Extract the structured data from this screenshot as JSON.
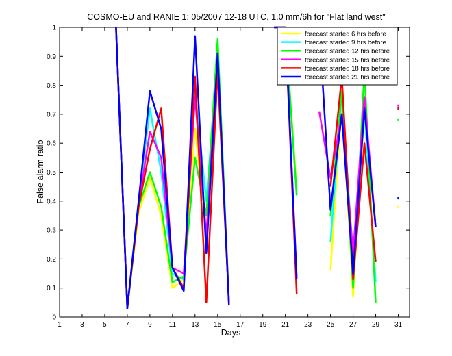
{
  "chart_data": {
    "type": "line",
    "title": "COSMO-EU and RANIE 1: 05/2007 12-18 UTC, 1.0 mm/6h for \"Flat land west\"",
    "xlabel": "Days",
    "ylabel": "False alarm ratio",
    "xlim": [
      1,
      32
    ],
    "ylim": [
      0,
      1
    ],
    "x_ticks": [
      1,
      3,
      5,
      7,
      9,
      11,
      13,
      15,
      17,
      19,
      21,
      23,
      25,
      27,
      29,
      31
    ],
    "y_ticks": [
      0,
      0.1,
      0.2,
      0.3,
      0.4,
      0.5,
      0.6,
      0.7,
      0.8,
      0.9,
      1
    ],
    "x_tick_labels": [
      "1",
      "3",
      "5",
      "7",
      "9",
      "11",
      "13",
      "15",
      "17",
      "19",
      "21",
      "23",
      "25",
      "27",
      "29",
      "31"
    ],
    "y_tick_labels": [
      "0",
      "0.1",
      "0.2",
      "0.3",
      "0.4",
      "0.5",
      "0.6",
      "0.7",
      "0.8",
      "0.9",
      "1"
    ],
    "legend_position": "top-right",
    "grid": false,
    "series": [
      {
        "name": "forecast started 6 hrs before",
        "color": "#ffff00",
        "x": [
          6,
          7,
          8,
          9,
          10,
          11,
          12,
          13,
          14,
          15,
          16,
          null,
          20,
          21,
          22,
          null,
          25,
          26,
          27,
          28,
          29,
          null,
          31
        ],
        "y": [
          1,
          0.03,
          0.36,
          0.48,
          0.35,
          0.1,
          0.13,
          0.65,
          0.28,
          0.85,
          0.05,
          null,
          1,
          1,
          0.44,
          null,
          0.16,
          0.75,
          0.07,
          0.72,
          0.33,
          null,
          0.38
        ]
      },
      {
        "name": "forecast started 9 hrs before",
        "color": "#00ffff",
        "x": [
          6,
          7,
          8,
          9,
          10,
          11,
          12,
          13,
          14,
          15,
          16,
          null,
          20,
          21,
          22,
          null,
          25,
          26,
          27,
          28,
          29,
          null,
          31
        ],
        "y": [
          1,
          0.03,
          0.4,
          0.72,
          0.5,
          0.15,
          0.13,
          0.78,
          0.4,
          0.9,
          0.05,
          null,
          1,
          1,
          0.42,
          null,
          0.26,
          0.77,
          0.2,
          0.72,
          0.12,
          null,
          0.41
        ]
      },
      {
        "name": "forecast started 12 hrs before",
        "color": "#00ff00",
        "x": [
          6,
          7,
          8,
          9,
          10,
          11,
          12,
          13,
          14,
          15,
          16,
          null,
          20,
          21,
          22,
          null,
          25,
          26,
          27,
          28,
          29,
          null,
          31
        ],
        "y": [
          1,
          0.03,
          0.38,
          0.5,
          0.38,
          0.12,
          0.14,
          0.55,
          0.35,
          0.96,
          0.05,
          null,
          1,
          1,
          0.42,
          null,
          0.35,
          0.78,
          0.1,
          0.85,
          0.05,
          null,
          0.68
        ]
      },
      {
        "name": "forecast started 15 hrs before",
        "color": "#ff00ff",
        "x": [
          6,
          7,
          8,
          9,
          10,
          11,
          12,
          13,
          14,
          15,
          16,
          null,
          20,
          21,
          22,
          null,
          24,
          25,
          26,
          27,
          28,
          29,
          null,
          31
        ],
        "y": [
          1,
          0.03,
          0.39,
          0.64,
          0.55,
          0.17,
          0.15,
          0.76,
          0.28,
          0.9,
          0.05,
          null,
          1,
          1,
          0.14,
          null,
          0.71,
          0.48,
          0.7,
          0.22,
          0.76,
          0.31,
          null,
          0.73
        ]
      },
      {
        "name": "forecast started 18 hrs before",
        "color": "#ff0000",
        "x": [
          6,
          7,
          8,
          9,
          10,
          11,
          12,
          13,
          14,
          15,
          16,
          null,
          20,
          21,
          22,
          null,
          25,
          26,
          27,
          28,
          29,
          null,
          31
        ],
        "y": [
          1,
          0.03,
          0.38,
          0.58,
          0.72,
          0.17,
          0.1,
          0.83,
          0.05,
          0.85,
          0.05,
          null,
          1,
          1,
          0.08,
          null,
          0.45,
          0.83,
          0.13,
          0.6,
          0.19,
          null,
          0.72
        ]
      },
      {
        "name": "forecast started 21 hrs before",
        "color": "#0000ff",
        "x": [
          6,
          7,
          8,
          9,
          10,
          11,
          12,
          13,
          14,
          15,
          16,
          null,
          20,
          21,
          22,
          null,
          24,
          25,
          26,
          27,
          28,
          29,
          null,
          31
        ],
        "y": [
          1,
          0.03,
          0.4,
          0.78,
          0.65,
          0.17,
          0.09,
          0.97,
          0.22,
          0.91,
          0.04,
          null,
          1,
          1,
          0.13,
          null,
          1,
          0.37,
          0.7,
          0.15,
          0.72,
          0.31,
          null,
          0.41
        ]
      }
    ]
  }
}
